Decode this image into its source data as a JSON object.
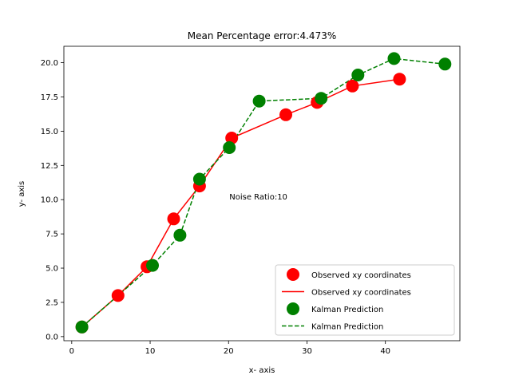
{
  "chart_data": {
    "type": "line",
    "title": "Mean Percentage error:4.473%",
    "xlabel": "x- axis",
    "ylabel": "y- axis",
    "xlim": [
      -1,
      49.5
    ],
    "ylim": [
      -0.3,
      21.2
    ],
    "xticks": [
      0,
      10,
      20,
      30,
      40
    ],
    "yticks": [
      0.0,
      2.5,
      5.0,
      7.5,
      10.0,
      12.5,
      15.0,
      17.5,
      20.0
    ],
    "xtick_labels": [
      "0",
      "10",
      "20",
      "30",
      "40"
    ],
    "ytick_labels": [
      "0.0",
      "2.5",
      "5.0",
      "7.5",
      "10.0",
      "12.5",
      "15.0",
      "17.5",
      "20.0"
    ],
    "grid": false,
    "legend_position": "lower right",
    "annotation": {
      "text": "Noise Ratio:10",
      "x": 20.1,
      "y": 10.0
    },
    "series": [
      {
        "name": "Observed xy coordinates",
        "color": "#ff0000",
        "line_style": "solid",
        "marker": "circle",
        "x": [
          1.3,
          5.9,
          9.6,
          13.0,
          16.3,
          20.4,
          27.3,
          31.3,
          35.8,
          41.8
        ],
        "y": [
          0.7,
          3.0,
          5.1,
          8.6,
          11.0,
          14.5,
          16.2,
          17.1,
          18.3,
          18.8
        ]
      },
      {
        "name": "Kalman Prediction",
        "color": "#008000",
        "line_style": "dashed",
        "marker": "circle",
        "x": [
          1.3,
          10.3,
          13.8,
          16.3,
          20.1,
          23.9,
          31.8,
          36.5,
          41.1,
          47.6
        ],
        "y": [
          0.7,
          5.2,
          7.4,
          11.5,
          13.8,
          17.2,
          17.4,
          19.1,
          20.3,
          19.9
        ]
      }
    ],
    "legend": [
      {
        "label": "Observed xy coordinates",
        "kind": "marker",
        "color": "#ff0000"
      },
      {
        "label": "Observed xy coordinates",
        "kind": "line",
        "color": "#ff0000"
      },
      {
        "label": "Kalman Prediction",
        "kind": "marker",
        "color": "#008000"
      },
      {
        "label": "Kalman Prediction",
        "kind": "dashed-line",
        "color": "#008000"
      }
    ]
  }
}
